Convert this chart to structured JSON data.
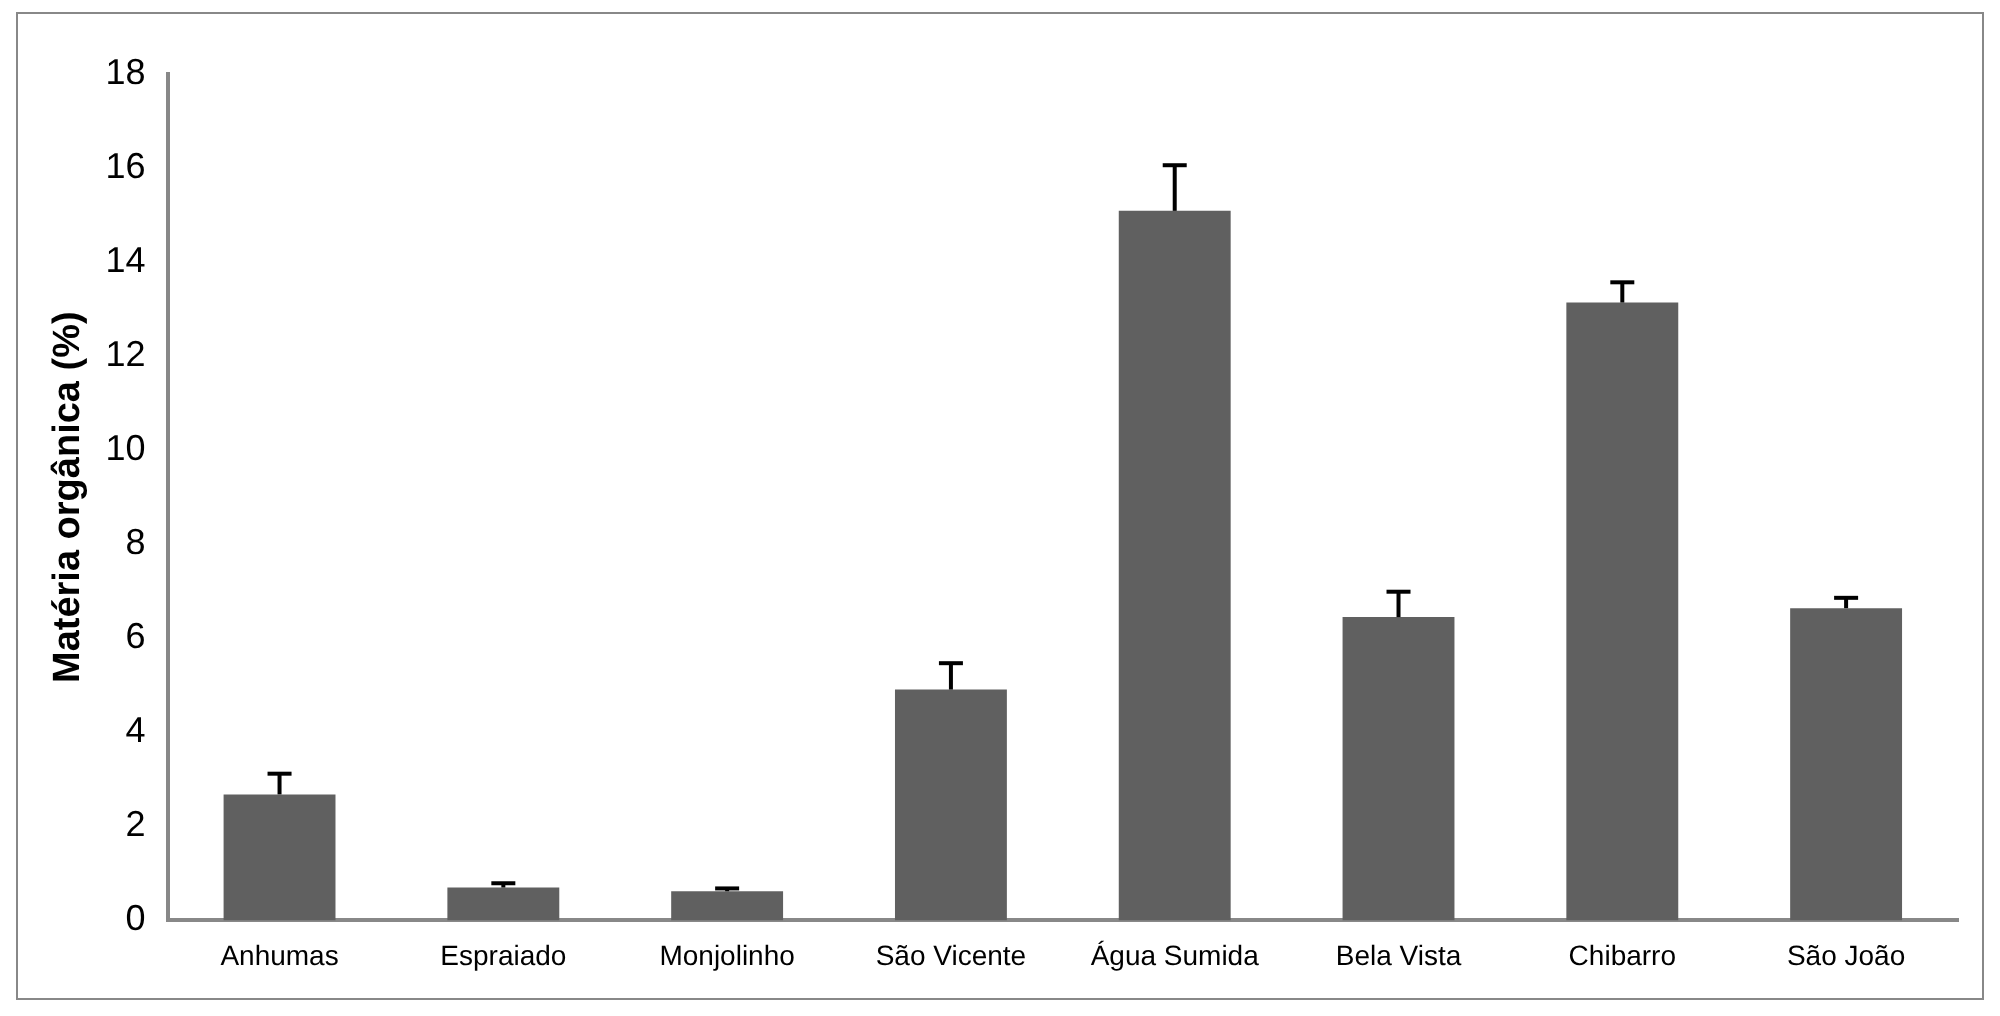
{
  "chart_data": {
    "type": "bar",
    "ylabel": "Matéria orgânica (%)",
    "categories": [
      "Anhumas",
      "Espraiado",
      "Monjolinho",
      "São Vicente",
      "Água Sumida",
      "Bela Vista",
      "Chibarro",
      "São João"
    ],
    "values": [
      2.68,
      0.7,
      0.62,
      4.91,
      15.09,
      6.45,
      13.14,
      6.64
    ],
    "errors": [
      [
        2.68,
        3.12
      ],
      [
        0.7,
        0.79
      ],
      [
        0.62,
        0.68
      ],
      [
        4.91,
        5.47
      ],
      [
        15.09,
        16.06
      ],
      [
        6.45,
        6.99
      ],
      [
        13.14,
        13.57
      ],
      [
        6.64,
        6.86
      ]
    ],
    "color": "#606060",
    "ylim": [
      0,
      18
    ],
    "yticks": [
      0,
      2,
      4,
      6,
      8,
      10,
      12,
      14,
      16,
      18
    ],
    "grid": false,
    "legend": false
  }
}
